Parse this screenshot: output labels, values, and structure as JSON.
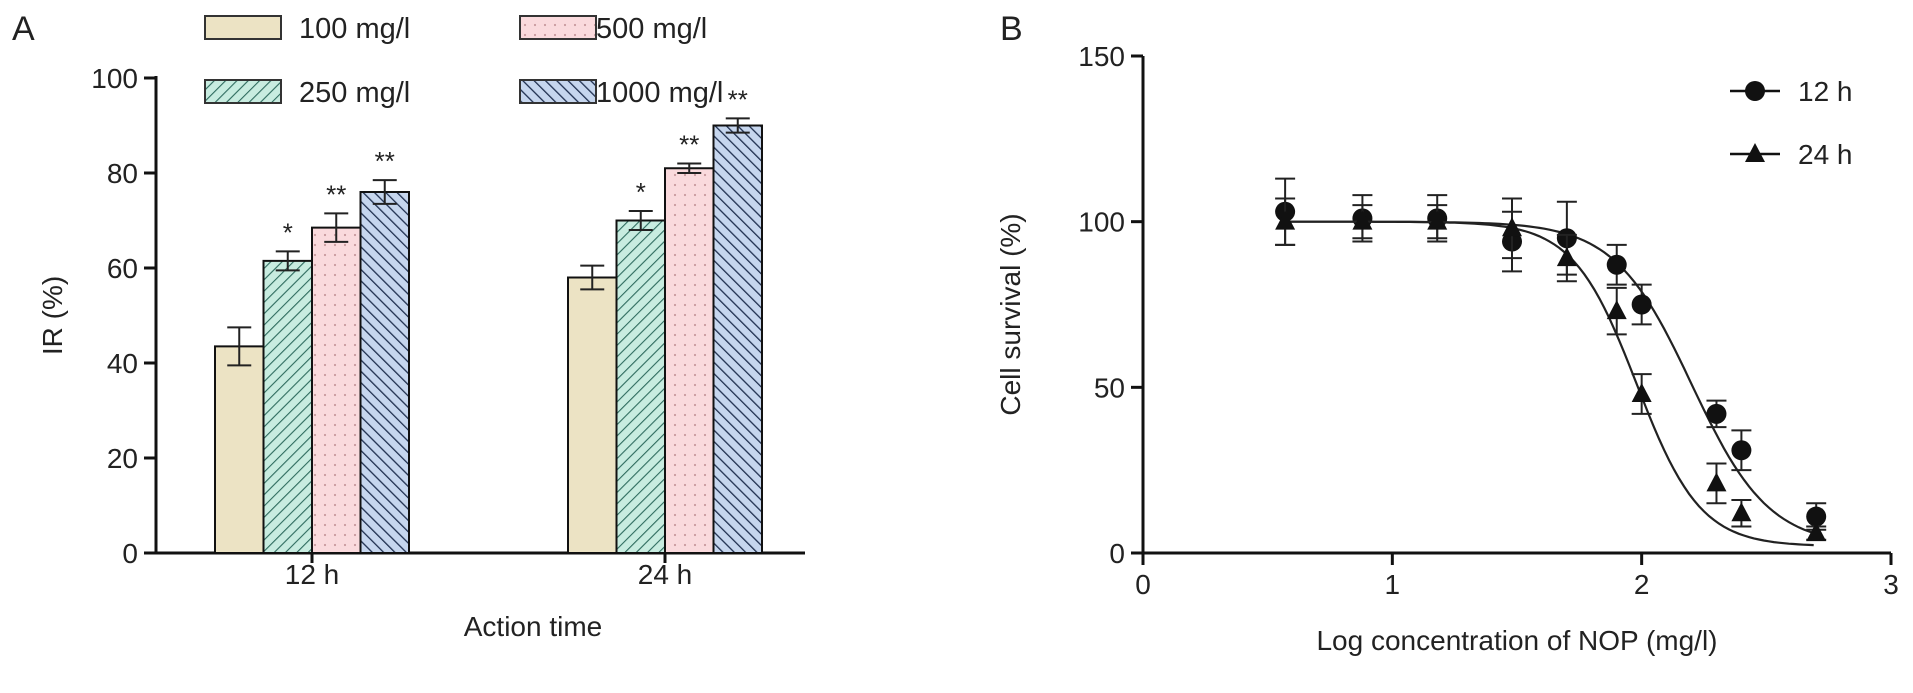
{
  "chart_data": [
    {
      "panel_label": "A",
      "type": "bar",
      "xlabel": "Action time",
      "ylabel": "IR (%)",
      "ylim": [
        0,
        100
      ],
      "yticks": [
        0,
        20,
        40,
        60,
        80,
        100
      ],
      "categories": [
        "12 h",
        "24 h"
      ],
      "legend_placement": "top",
      "series": [
        {
          "name": "100 mg/l",
          "values": [
            43.5,
            58
          ],
          "errors": [
            4,
            2.5
          ],
          "significance": [
            "",
            ""
          ],
          "color": "#ece3c4",
          "pattern": "solid"
        },
        {
          "name": "250 mg/l",
          "values": [
            61.5,
            70
          ],
          "errors": [
            2,
            2
          ],
          "significance": [
            "*",
            "*"
          ],
          "color": "#c8ece0",
          "pattern": "forward-hatch"
        },
        {
          "name": "500 mg/l",
          "values": [
            68.5,
            81
          ],
          "errors": [
            3,
            1
          ],
          "significance": [
            "**",
            "**"
          ],
          "color": "#fadadd",
          "pattern": "dots"
        },
        {
          "name": "1000 mg/l",
          "values": [
            76,
            90
          ],
          "errors": [
            2.5,
            1.5
          ],
          "significance": [
            "**",
            "**"
          ],
          "color": "#c6d6ee",
          "pattern": "back-hatch"
        }
      ]
    },
    {
      "panel_label": "B",
      "type": "scatter",
      "xlabel": "Log concentration of NOP (mg/l)",
      "ylabel": "Cell survival (%)",
      "xlim": [
        0,
        3
      ],
      "ylim": [
        0,
        150
      ],
      "xticks": [
        0,
        1,
        2,
        3
      ],
      "yticks": [
        0,
        50,
        100,
        150
      ],
      "legend_placement": "top-right",
      "x": [
        0.57,
        0.88,
        1.18,
        1.48,
        1.7,
        1.9,
        2.0,
        2.3,
        2.4,
        2.7
      ],
      "series": [
        {
          "name": "12 h",
          "marker": "circle",
          "values": [
            103,
            101,
            101,
            94,
            95,
            87,
            75,
            42,
            31,
            11
          ],
          "errors": [
            10,
            7,
            7,
            9,
            11,
            6,
            6,
            4,
            6,
            4
          ],
          "fit_ic50_log": 2.2
        },
        {
          "name": "24 h",
          "marker": "triangle",
          "values": [
            100,
            100,
            100,
            98,
            89,
            73,
            48,
            21,
            12,
            6
          ],
          "errors": [
            7,
            5,
            5,
            9,
            7,
            7,
            6,
            6,
            4,
            2
          ],
          "fit_ic50_log": 1.98
        }
      ]
    }
  ]
}
